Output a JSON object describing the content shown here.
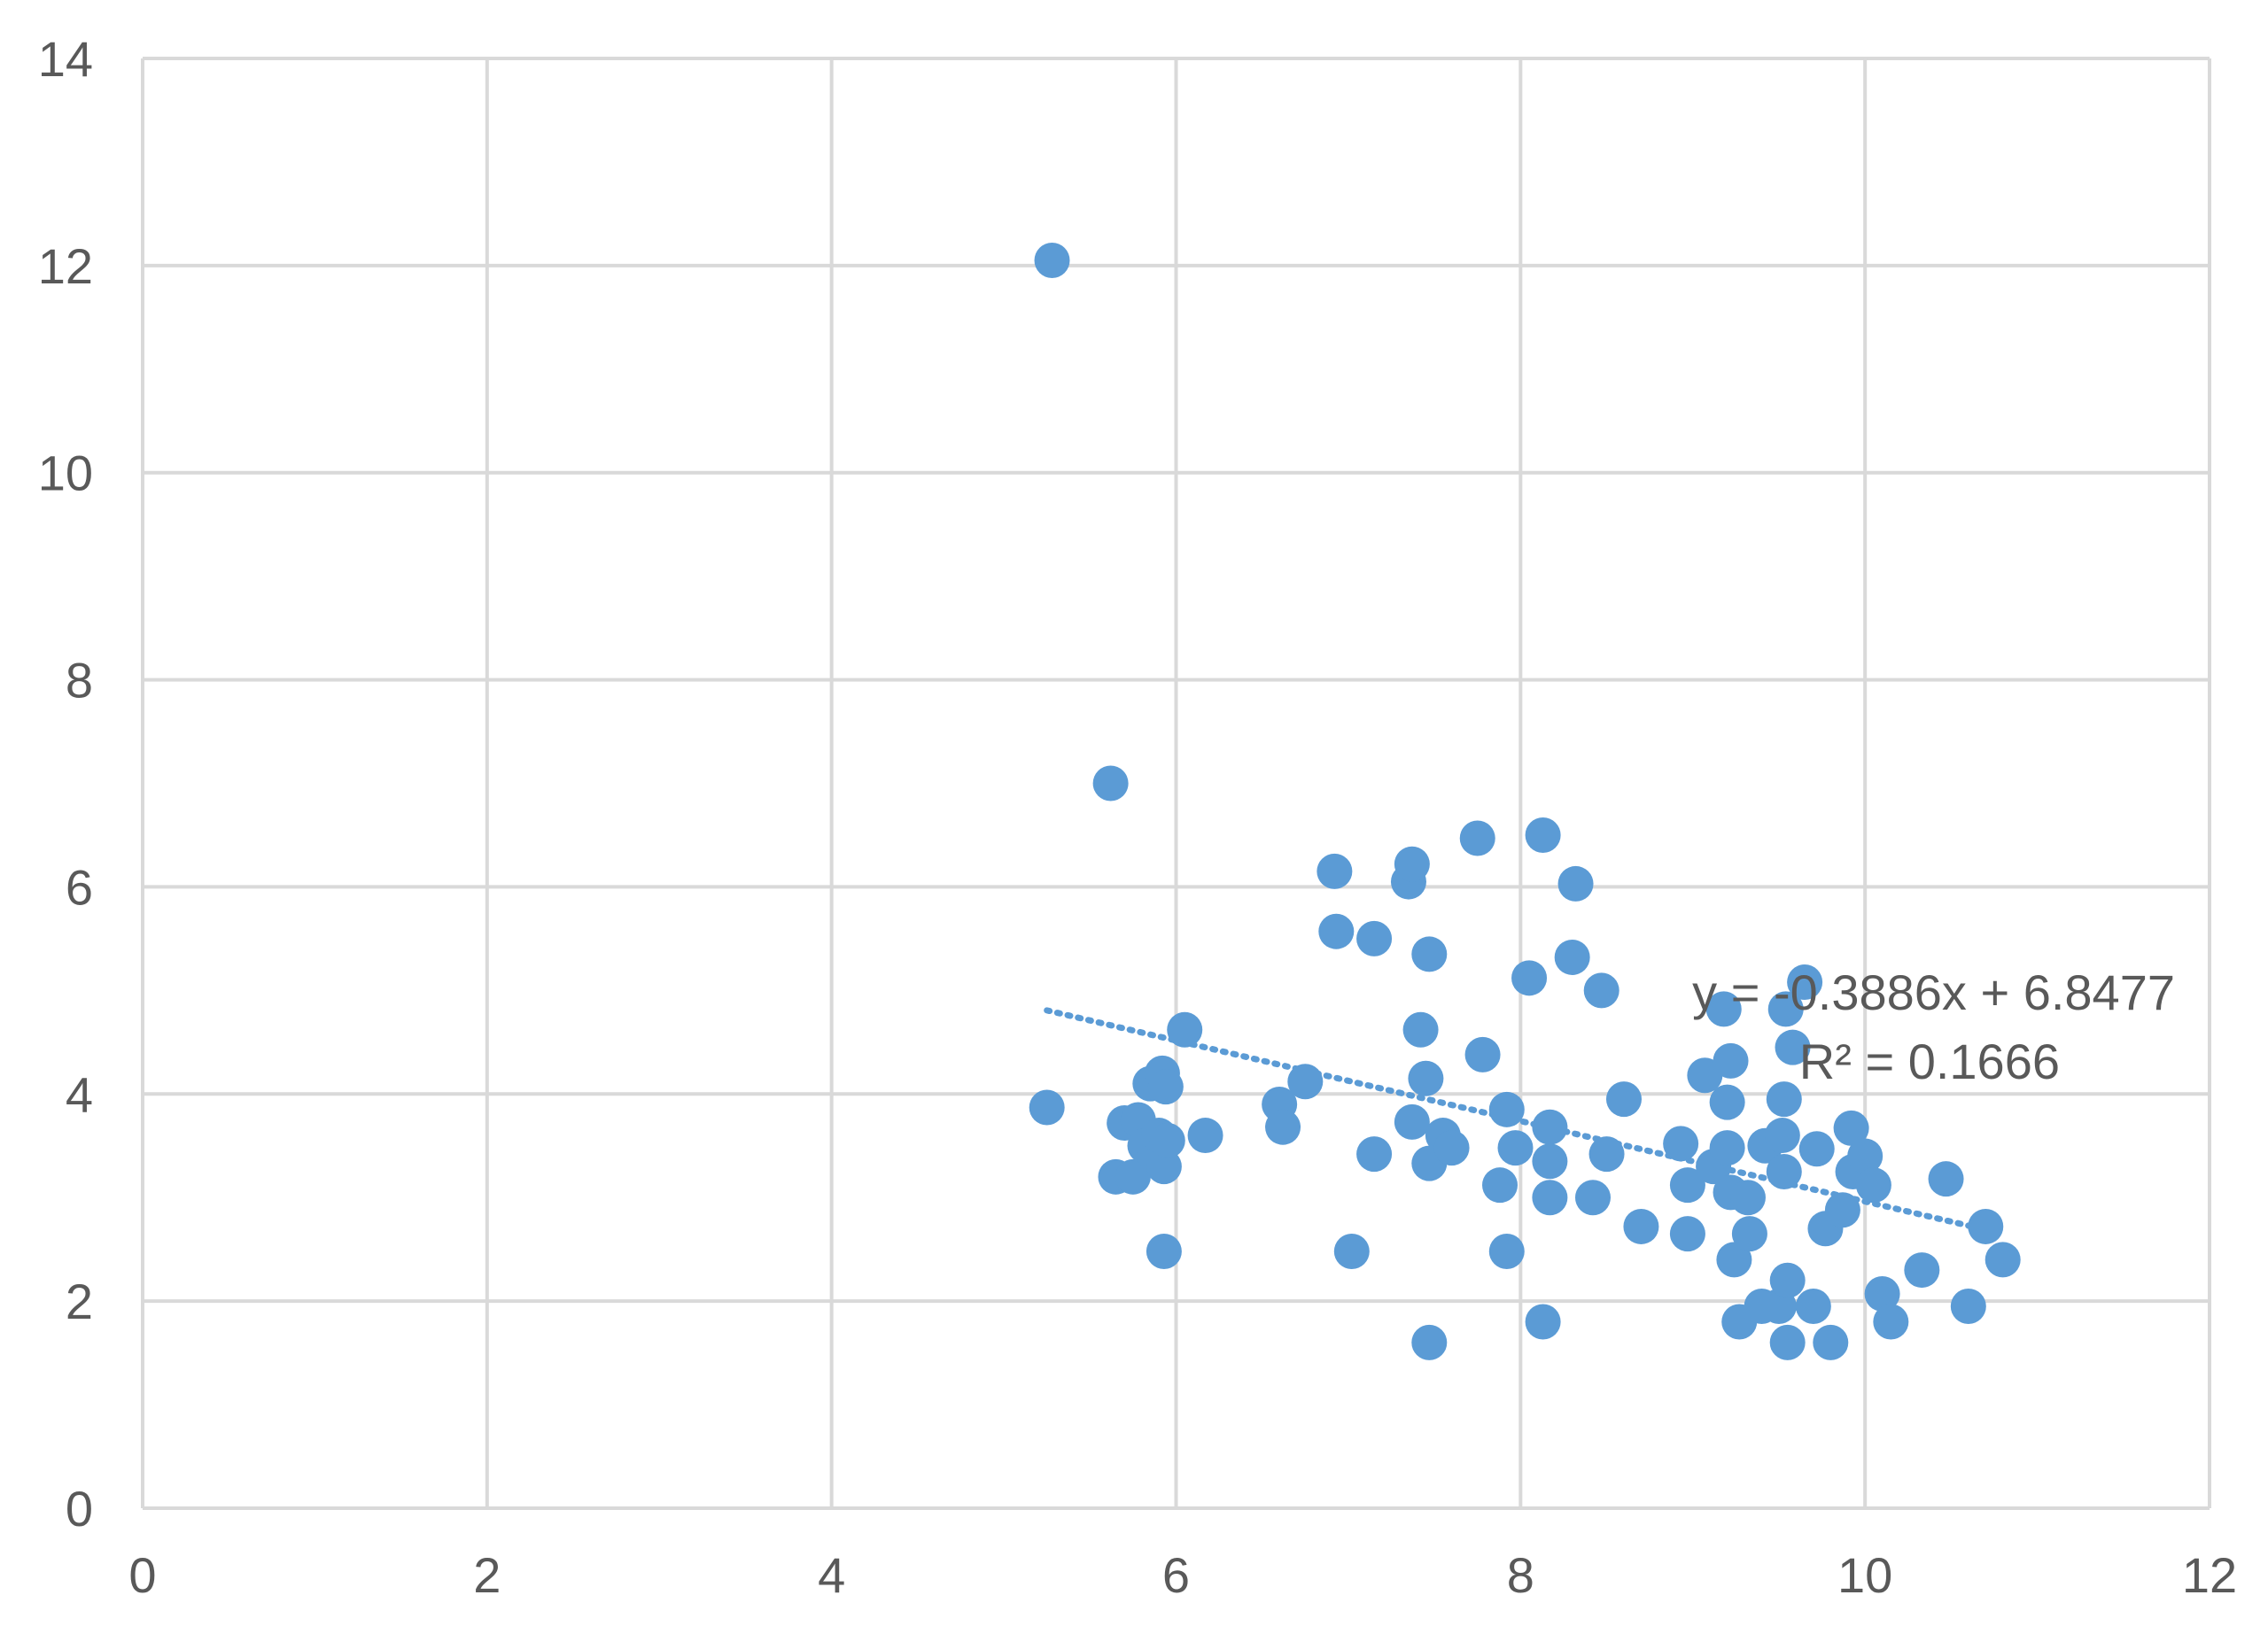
{
  "chart_data": {
    "type": "scatter",
    "title": "",
    "xlabel": "",
    "ylabel": "",
    "xlim": [
      0,
      12
    ],
    "ylim": [
      0,
      14
    ],
    "xticks": [
      "0",
      "2",
      "4",
      "6",
      "8",
      "10",
      "12"
    ],
    "yticks": [
      "0",
      "2",
      "4",
      "6",
      "8",
      "10",
      "12",
      "14"
    ],
    "grid": true,
    "colors": {
      "points": "#5b9bd5",
      "grid": "#d9d9d9",
      "text": "#595959",
      "trendline": "#5b9bd5"
    },
    "trendline": {
      "type": "linear",
      "style": "dotted",
      "slope": -0.3886,
      "intercept": 6.8477,
      "x_range": [
        5.25,
        10.7
      ],
      "equation": "y = -0.3886x + 6.8477",
      "r_squared": "R² = 0.1666"
    },
    "points": [
      [
        5.28,
        12.05
      ],
      [
        5.62,
        7.0
      ],
      [
        5.25,
        3.87
      ],
      [
        5.65,
        3.2
      ],
      [
        5.7,
        3.72
      ],
      [
        5.75,
        3.2
      ],
      [
        5.78,
        3.75
      ],
      [
        5.82,
        3.5
      ],
      [
        5.85,
        4.1
      ],
      [
        5.88,
        3.4
      ],
      [
        5.9,
        3.6
      ],
      [
        5.92,
        4.2
      ],
      [
        5.93,
        3.3
      ],
      [
        5.94,
        4.07
      ],
      [
        5.95,
        3.55
      ],
      [
        5.93,
        2.48
      ],
      [
        6.05,
        4.62
      ],
      [
        6.17,
        3.6
      ],
      [
        6.6,
        3.9
      ],
      [
        6.62,
        3.68
      ],
      [
        6.75,
        4.12
      ],
      [
        6.92,
        6.15
      ],
      [
        6.93,
        5.57
      ],
      [
        7.02,
        2.48
      ],
      [
        7.15,
        5.5
      ],
      [
        7.15,
        3.42
      ],
      [
        7.35,
        6.05
      ],
      [
        7.37,
        6.22
      ],
      [
        7.37,
        3.73
      ],
      [
        7.42,
        4.62
      ],
      [
        7.45,
        4.15
      ],
      [
        7.47,
        5.35
      ],
      [
        7.47,
        3.33
      ],
      [
        7.47,
        1.6
      ],
      [
        7.55,
        3.6
      ],
      [
        7.6,
        3.48
      ],
      [
        7.75,
        6.47
      ],
      [
        7.78,
        4.38
      ],
      [
        7.88,
        3.12
      ],
      [
        7.92,
        3.85
      ],
      [
        7.92,
        2.48
      ],
      [
        7.97,
        3.48
      ],
      [
        8.05,
        5.12
      ],
      [
        8.13,
        6.5
      ],
      [
        8.13,
        1.8
      ],
      [
        8.17,
        3.68
      ],
      [
        8.17,
        3.35
      ],
      [
        8.17,
        3.0
      ],
      [
        8.3,
        5.32
      ],
      [
        8.32,
        6.03
      ],
      [
        8.42,
        3.0
      ],
      [
        8.47,
        5.0
      ],
      [
        8.5,
        3.42
      ],
      [
        8.6,
        3.95
      ],
      [
        8.7,
        2.72
      ],
      [
        8.93,
        3.52
      ],
      [
        8.97,
        3.12
      ],
      [
        8.97,
        2.65
      ],
      [
        9.07,
        4.18
      ],
      [
        9.12,
        3.3
      ],
      [
        9.18,
        4.82
      ],
      [
        9.2,
        3.92
      ],
      [
        9.2,
        3.48
      ],
      [
        9.22,
        3.05
      ],
      [
        9.22,
        4.32
      ],
      [
        9.24,
        2.4
      ],
      [
        9.27,
        1.8
      ],
      [
        9.32,
        3.0
      ],
      [
        9.33,
        2.65
      ],
      [
        9.4,
        1.95
      ],
      [
        9.42,
        3.5
      ],
      [
        9.5,
        1.95
      ],
      [
        9.52,
        3.6
      ],
      [
        9.53,
        3.95
      ],
      [
        9.53,
        3.25
      ],
      [
        9.54,
        4.82
      ],
      [
        9.55,
        2.2
      ],
      [
        9.55,
        1.6
      ],
      [
        9.58,
        4.45
      ],
      [
        9.65,
        5.08
      ],
      [
        9.7,
        1.95
      ],
      [
        9.72,
        3.47
      ],
      [
        9.77,
        2.7
      ],
      [
        9.8,
        1.6
      ],
      [
        9.87,
        2.88
      ],
      [
        9.92,
        3.67
      ],
      [
        9.93,
        3.25
      ],
      [
        10.0,
        3.4
      ],
      [
        10.05,
        3.12
      ],
      [
        10.1,
        2.07
      ],
      [
        10.15,
        1.8
      ],
      [
        10.33,
        2.3
      ],
      [
        10.47,
        3.18
      ],
      [
        10.6,
        1.95
      ],
      [
        10.7,
        2.72
      ],
      [
        10.8,
        2.4
      ]
    ]
  }
}
